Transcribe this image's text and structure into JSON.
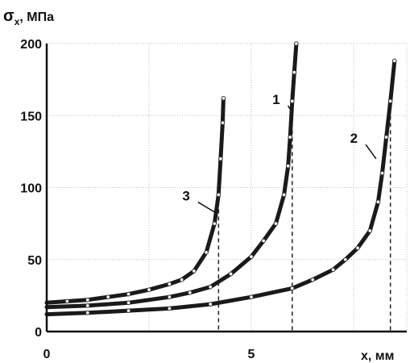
{
  "chart_data": {
    "type": "line",
    "title": "",
    "ylabel_symbol": "σ",
    "ylabel_sub": "x",
    "ylabel_unit": ", МПа",
    "xlabel": "x, мм",
    "xlim": [
      0,
      8.8
    ],
    "ylim": [
      0,
      200
    ],
    "xticks": [
      0,
      5
    ],
    "yticks": [
      0,
      50,
      100,
      150,
      200
    ],
    "grid": true,
    "series": [
      {
        "name": "1",
        "points": [
          [
            0,
            17
          ],
          [
            1,
            18
          ],
          [
            2,
            20
          ],
          [
            3,
            24
          ],
          [
            3.5,
            27
          ],
          [
            4,
            31
          ],
          [
            4.5,
            40
          ],
          [
            5,
            52
          ],
          [
            5.3,
            63
          ],
          [
            5.6,
            75
          ],
          [
            5.8,
            95
          ],
          [
            5.9,
            115
          ],
          [
            5.95,
            135
          ],
          [
            6.0,
            160
          ],
          [
            6.05,
            180
          ],
          [
            6.1,
            200
          ]
        ],
        "dropline_x": 6.0
      },
      {
        "name": "2",
        "points": [
          [
            0,
            12
          ],
          [
            1,
            13
          ],
          [
            2,
            14.5
          ],
          [
            3,
            16
          ],
          [
            4,
            19
          ],
          [
            5,
            24
          ],
          [
            6,
            30
          ],
          [
            6.5,
            36
          ],
          [
            7,
            43
          ],
          [
            7.3,
            50
          ],
          [
            7.6,
            58
          ],
          [
            7.9,
            70
          ],
          [
            8.1,
            90
          ],
          [
            8.2,
            110
          ],
          [
            8.3,
            135
          ],
          [
            8.4,
            160
          ],
          [
            8.5,
            188
          ]
        ],
        "dropline_x": 8.4
      },
      {
        "name": "3",
        "points": [
          [
            0,
            20
          ],
          [
            0.5,
            21
          ],
          [
            1,
            22
          ],
          [
            1.5,
            24
          ],
          [
            2,
            26
          ],
          [
            2.5,
            29
          ],
          [
            3,
            33
          ],
          [
            3.3,
            36
          ],
          [
            3.6,
            42
          ],
          [
            3.9,
            55
          ],
          [
            4.1,
            75
          ],
          [
            4.2,
            95
          ],
          [
            4.25,
            120
          ],
          [
            4.3,
            145
          ],
          [
            4.32,
            162
          ]
        ],
        "dropline_x": 4.2
      }
    ],
    "curve_labels": [
      {
        "text": "1",
        "x": 5.7,
        "y": 158,
        "to": [
          5.96,
          154
        ]
      },
      {
        "text": "2",
        "x": 7.6,
        "y": 131,
        "to": [
          8.05,
          120
        ]
      },
      {
        "text": "3",
        "x": 3.5,
        "y": 91,
        "to": [
          4.16,
          82
        ]
      }
    ]
  }
}
